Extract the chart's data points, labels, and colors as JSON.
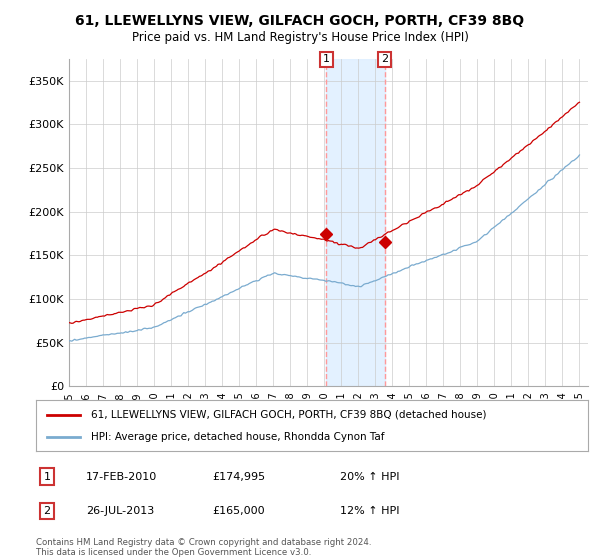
{
  "title": "61, LLEWELLYNS VIEW, GILFACH GOCH, PORTH, CF39 8BQ",
  "subtitle": "Price paid vs. HM Land Registry's House Price Index (HPI)",
  "ylabel_ticks": [
    "£0",
    "£50K",
    "£100K",
    "£150K",
    "£200K",
    "£250K",
    "£300K",
    "£350K"
  ],
  "ytick_values": [
    0,
    50000,
    100000,
    150000,
    200000,
    250000,
    300000,
    350000
  ],
  "ylim": [
    0,
    375000
  ],
  "xlim_start": 1995,
  "xlim_end": 2025.5,
  "legend_line1": "61, LLEWELLYNS VIEW, GILFACH GOCH, PORTH, CF39 8BQ (detached house)",
  "legend_line2": "HPI: Average price, detached house, Rhondda Cynon Taf",
  "line1_color": "#cc0000",
  "line2_color": "#7aabcf",
  "annotation1_date": "17-FEB-2010",
  "annotation1_price": "£174,995",
  "annotation1_hpi": "20% ↑ HPI",
  "annotation1_year": 2010.13,
  "annotation1_price_val": 174995,
  "annotation2_date": "26-JUL-2013",
  "annotation2_price": "£165,000",
  "annotation2_hpi": "12% ↑ HPI",
  "annotation2_year": 2013.56,
  "annotation2_price_val": 165000,
  "footer": "Contains HM Land Registry data © Crown copyright and database right 2024.\nThis data is licensed under the Open Government Licence v3.0.",
  "background_color": "#ffffff",
  "grid_color": "#cccccc",
  "shade_color": "#ddeeff"
}
